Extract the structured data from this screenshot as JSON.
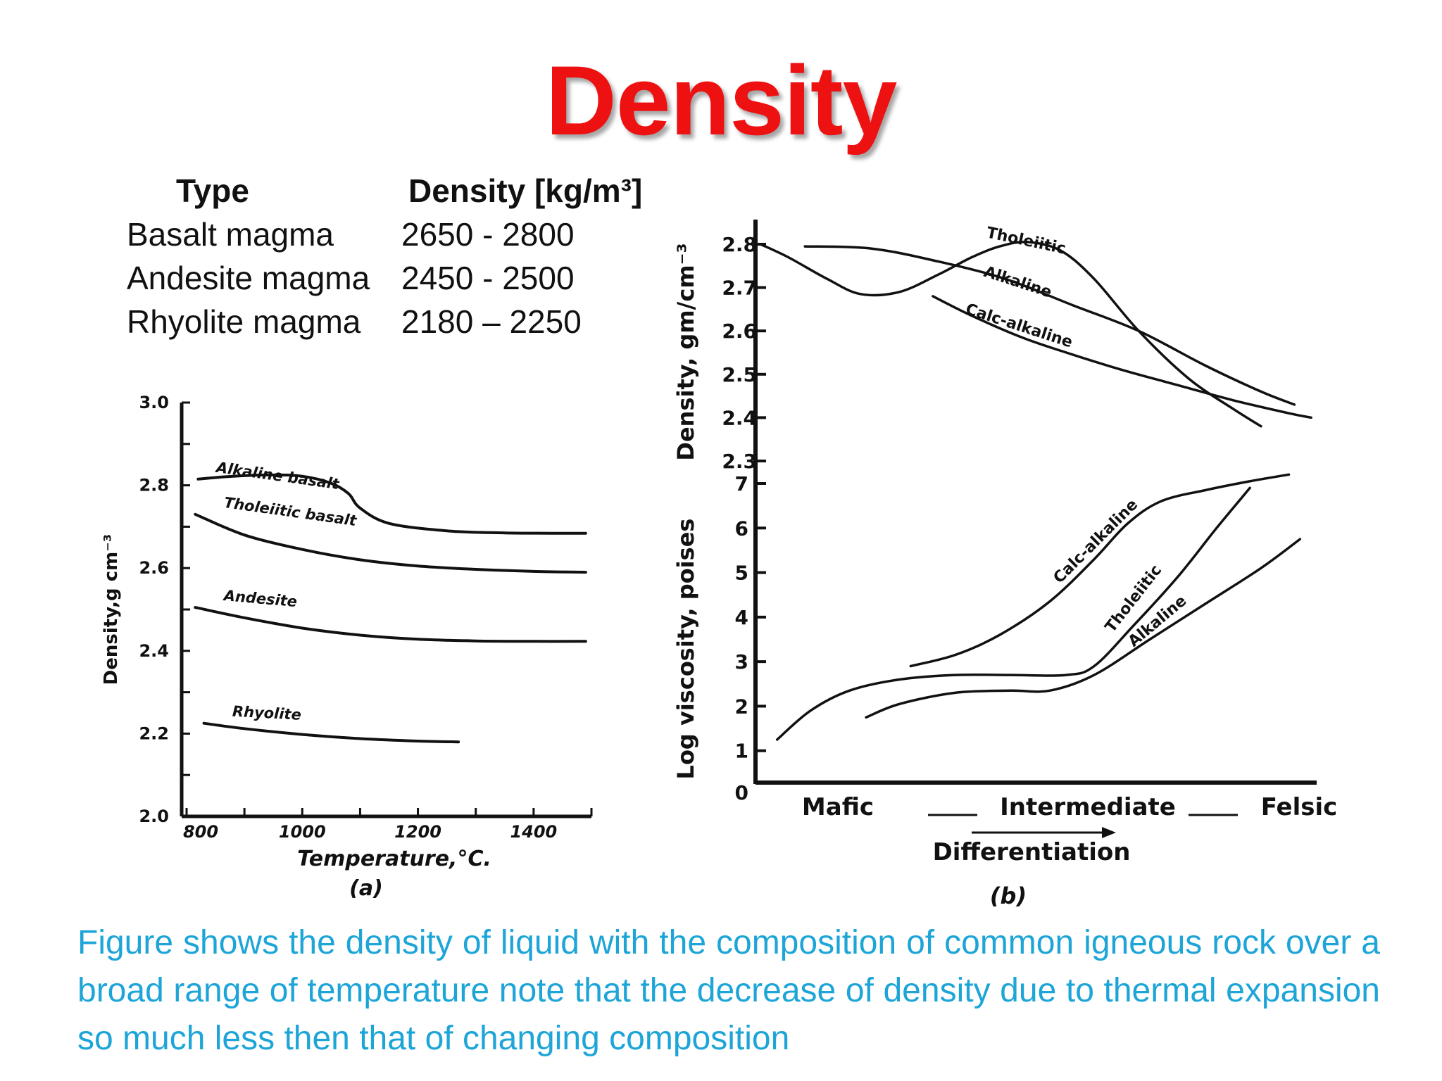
{
  "slide": {
    "title": "Density",
    "caption": "Figure shows the density of liquid with the composition of common igneous rock over a broad range of temperature note that the decrease of density due to thermal expansion so much less then that of changing composition"
  },
  "density_table": {
    "headers": {
      "type": "Type",
      "density": "Density [kg/m³]"
    },
    "rows": [
      {
        "type": "Basalt magma",
        "density": "2650 - 2800"
      },
      {
        "type": "Andesite magma",
        "density": "2450 - 2500"
      },
      {
        "type": "Rhyolite magma",
        "density": "2180 – 2250"
      }
    ]
  },
  "chart_data": [
    {
      "type": "line",
      "panel_label": "(a)",
      "xlabel": "Temperature,°C.",
      "ylabel": "Density,g cm⁻³",
      "xlim": [
        800,
        1500
      ],
      "ylim": [
        2.0,
        3.0
      ],
      "x_ticks": [
        "800",
        "1000",
        "1200",
        "1400"
      ],
      "x_tick_values": [
        800,
        1000,
        1200,
        1400
      ],
      "y_ticks": [
        "2.0",
        "2.2",
        "2.4",
        "2.6",
        "2.8",
        "3.0"
      ],
      "y_tick_values": [
        2.0,
        2.2,
        2.4,
        2.6,
        2.8,
        3.0
      ],
      "grid": false,
      "series": [
        {
          "name": "Alkaline basalt",
          "x": [
            820,
            880,
            950,
            1000,
            1050,
            1080,
            1100,
            1150,
            1250,
            1350,
            1450,
            1490
          ],
          "y": [
            2.815,
            2.822,
            2.825,
            2.822,
            2.805,
            2.78,
            2.745,
            2.708,
            2.69,
            2.685,
            2.684,
            2.684
          ]
        },
        {
          "name": "Tholeiitic basalt",
          "x": [
            815,
            900,
            1000,
            1100,
            1200,
            1300,
            1400,
            1490
          ],
          "y": [
            2.73,
            2.68,
            2.645,
            2.62,
            2.605,
            2.597,
            2.592,
            2.59
          ]
        },
        {
          "name": "Andesite",
          "x": [
            815,
            900,
            1000,
            1100,
            1200,
            1300,
            1400,
            1490
          ],
          "y": [
            2.505,
            2.48,
            2.455,
            2.438,
            2.428,
            2.424,
            2.423,
            2.423
          ]
        },
        {
          "name": "Rhyolite",
          "x": [
            830,
            900,
            1000,
            1100,
            1200,
            1270
          ],
          "y": [
            2.225,
            2.212,
            2.198,
            2.188,
            2.182,
            2.18
          ]
        }
      ]
    },
    {
      "type": "line",
      "panel_label": "(b)",
      "xlabel": "Differentiation",
      "x_categories": [
        "Mafic",
        "Intermediate",
        "Felsic"
      ],
      "top_panel": {
        "ylabel": "Density, gm/cm⁻³",
        "ylim": [
          2.3,
          2.8
        ],
        "y_ticks": [
          "2.3",
          "2.4",
          "2.5",
          "2.6",
          "2.7",
          "2.8"
        ],
        "y_tick_values": [
          2.3,
          2.4,
          2.5,
          2.6,
          2.7,
          2.8
        ],
        "series": [
          {
            "name": "Tholeiitic",
            "x": [
              0.0,
              0.05,
              0.12,
              0.18,
              0.25,
              0.32,
              0.38,
              0.43,
              0.48,
              0.54,
              0.6,
              0.68,
              0.77,
              0.85,
              0.9
            ],
            "y": [
              2.8,
              2.77,
              2.72,
              2.685,
              2.69,
              2.73,
              2.77,
              2.795,
              2.805,
              2.785,
              2.72,
              2.6,
              2.49,
              2.42,
              2.38
            ]
          },
          {
            "name": "Alkaline",
            "x": [
              0.08,
              0.2,
              0.32,
              0.44,
              0.56,
              0.68,
              0.8,
              0.9,
              0.96
            ],
            "y": [
              2.795,
              2.79,
              2.76,
              2.72,
              2.66,
              2.6,
              2.52,
              2.46,
              2.43
            ]
          },
          {
            "name": "Calc-alkaline",
            "x": [
              0.31,
              0.38,
              0.47,
              0.55,
              0.65,
              0.75,
              0.85,
              0.95,
              0.99
            ],
            "y": [
              2.68,
              2.635,
              2.585,
              2.55,
              2.51,
              2.475,
              2.44,
              2.41,
              2.4
            ]
          }
        ]
      },
      "bottom_panel": {
        "ylabel": "Log viscosity, poises",
        "ylim": [
          0,
          7
        ],
        "y_ticks": [
          "0",
          "1",
          "2",
          "3",
          "4",
          "5",
          "6",
          "7"
        ],
        "y_tick_values": [
          0,
          1,
          2,
          3,
          4,
          5,
          6,
          7
        ],
        "series": [
          {
            "name": "Calc-alkaline",
            "x": [
              0.27,
              0.35,
              0.43,
              0.52,
              0.6,
              0.66,
              0.72,
              0.8,
              0.88,
              0.95
            ],
            "y": [
              2.9,
              3.15,
              3.6,
              4.35,
              5.3,
              6.1,
              6.6,
              6.85,
              7.05,
              7.2
            ]
          },
          {
            "name": "Tholeiitic",
            "x": [
              0.03,
              0.09,
              0.16,
              0.25,
              0.35,
              0.45,
              0.55,
              0.6,
              0.67,
              0.75,
              0.82,
              0.88
            ],
            "y": [
              1.25,
              1.9,
              2.35,
              2.6,
              2.7,
              2.7,
              2.7,
              2.9,
              3.8,
              4.9,
              6.0,
              6.9
            ]
          },
          {
            "name": "Alkaline",
            "x": [
              0.19,
              0.25,
              0.35,
              0.45,
              0.52,
              0.6,
              0.7,
              0.8,
              0.9,
              0.97
            ],
            "y": [
              1.75,
              2.05,
              2.3,
              2.35,
              2.35,
              2.7,
              3.5,
              4.3,
              5.1,
              5.75
            ]
          }
        ]
      }
    }
  ]
}
